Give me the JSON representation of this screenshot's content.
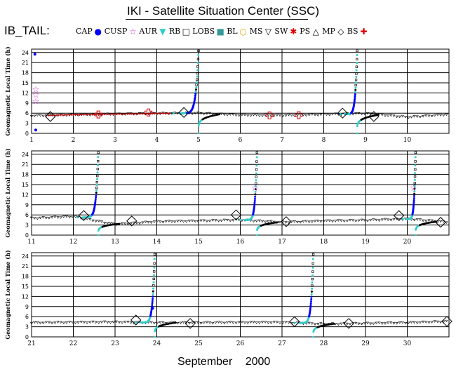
{
  "header": {
    "title": "IKI - Satellite Situation Center (SSC)",
    "series_tag": "IB_TAIL:"
  },
  "legend": [
    {
      "key": "CAP",
      "label": "CAP",
      "symbol": "●",
      "color": "#0000ff"
    },
    {
      "key": "CUSP",
      "label": "CUSP",
      "symbol": "☆",
      "color": "#cc33cc"
    },
    {
      "key": "AUR",
      "label": "AUR",
      "symbol": "▼",
      "color": "#33cccc"
    },
    {
      "key": "RB",
      "label": "RB",
      "symbol": "□",
      "color": "#000000"
    },
    {
      "key": "LOBS",
      "label": "LOBS",
      "symbol": "■",
      "color": "#339999"
    },
    {
      "key": "BL",
      "label": "BL",
      "symbol": "○",
      "color": "#e6a800"
    },
    {
      "key": "MS",
      "label": "MS",
      "symbol": "▽",
      "color": "#000000"
    },
    {
      "key": "SW",
      "label": "SW",
      "symbol": "✱",
      "color": "#dd0000"
    },
    {
      "key": "PS",
      "label": "PS",
      "symbol": "△",
      "color": "#000000"
    },
    {
      "key": "MP",
      "label": "MP",
      "symbol": "◇",
      "color": "#000000"
    },
    {
      "key": "BS",
      "label": "BS",
      "symbol": "✚",
      "color": "#dd0000"
    }
  ],
  "colors": {
    "CAP": "#0000ff",
    "CUSP": "#cc33cc",
    "AUR": "#33cccc",
    "RB": "#000000",
    "MS": "#000000",
    "SW": "#cc0000",
    "grid": "#000000"
  },
  "chart_data": {
    "type": "scatter",
    "xlabel": "September 2000",
    "ylabel": "Geomagnetic Local Time (h)",
    "ylim": [
      0,
      25
    ],
    "yticks": [
      0,
      3,
      6,
      9,
      12,
      15,
      18,
      21,
      24
    ],
    "panels": [
      {
        "xlim": [
          1,
          11
        ],
        "xticks": [
          "1",
          "2",
          "3",
          "4",
          "5",
          "6",
          "7",
          "8",
          "9",
          "10"
        ],
        "baseline": [
          5.2,
          5.5,
          5.7,
          5.9,
          6.0,
          5.4,
          5.3,
          5.6,
          5.9,
          4.8,
          5.6
        ],
        "sw_segments": [
          [
            1.4,
            2.6
          ],
          [
            2.6,
            4.3
          ]
        ],
        "rises": [
          {
            "from": 4.4,
            "to": 5.0
          },
          {
            "from": 8.4,
            "to": 8.8
          }
        ],
        "cap_dots": [
          {
            "x": 1.08,
            "y": 23.5
          },
          {
            "x": 1.1,
            "y": 1.0
          }
        ],
        "cusp_marks": [
          {
            "x": 1.1,
            "y": 9.5
          },
          {
            "x": 1.1,
            "y": 11.5
          },
          {
            "x": 1.1,
            "y": 13.0
          }
        ],
        "mp_marks": [
          {
            "x": 1.45,
            "y": 5.0
          },
          {
            "x": 4.65,
            "y": 6.2
          },
          {
            "x": 8.45,
            "y": 6.0
          },
          {
            "x": 9.2,
            "y": 5.0
          }
        ],
        "bs_marks": [
          {
            "x": 2.6,
            "y": 5.6
          },
          {
            "x": 3.8,
            "y": 6.2
          },
          {
            "x": 6.7,
            "y": 5.3
          },
          {
            "x": 7.4,
            "y": 5.4
          }
        ]
      },
      {
        "xlim": [
          11,
          21
        ],
        "xticks": [
          "11",
          "12",
          "13",
          "14",
          "15",
          "16",
          "17",
          "18",
          "19",
          "20"
        ],
        "baseline": [
          5.0,
          5.5,
          3.2,
          4.0,
          4.2,
          4.5,
          3.8,
          4.2,
          4.4,
          4.8,
          3.8
        ],
        "sw_segments": [],
        "rises": [
          {
            "from": 12.1,
            "to": 12.6
          },
          {
            "from": 16.0,
            "to": 16.4
          },
          {
            "from": 19.9,
            "to": 20.2
          }
        ],
        "cap_dots": [],
        "cusp_marks": [
          {
            "x": 16.35,
            "y": 14.0
          },
          {
            "x": 20.15,
            "y": 14.0
          }
        ],
        "mp_marks": [
          {
            "x": 12.25,
            "y": 5.8
          },
          {
            "x": 13.4,
            "y": 4.2
          },
          {
            "x": 15.9,
            "y": 6.0
          },
          {
            "x": 17.1,
            "y": 4.0
          },
          {
            "x": 19.8,
            "y": 5.8
          },
          {
            "x": 20.8,
            "y": 3.8
          }
        ],
        "bs_marks": []
      },
      {
        "xlim": [
          21,
          31
        ],
        "xticks": [
          "21",
          "22",
          "23",
          "24",
          "25",
          "26",
          "27",
          "28",
          "29",
          "30"
        ],
        "baseline": [
          4.2,
          4.3,
          4.4,
          4.2,
          4.2,
          4.3,
          4.3,
          3.8,
          4.0,
          4.2,
          4.6
        ],
        "sw_segments": [],
        "rises": [
          {
            "from": 23.5,
            "to": 23.95
          },
          {
            "from": 27.3,
            "to": 27.75
          }
        ],
        "cap_dots": [
          {
            "x": 23.9,
            "y": 8.5
          }
        ],
        "cusp_marks": [],
        "mp_marks": [
          {
            "x": 23.5,
            "y": 5.0
          },
          {
            "x": 24.8,
            "y": 4.0
          },
          {
            "x": 27.3,
            "y": 4.5
          },
          {
            "x": 28.6,
            "y": 4.0
          },
          {
            "x": 30.95,
            "y": 4.6
          }
        ],
        "bs_marks": []
      }
    ]
  }
}
